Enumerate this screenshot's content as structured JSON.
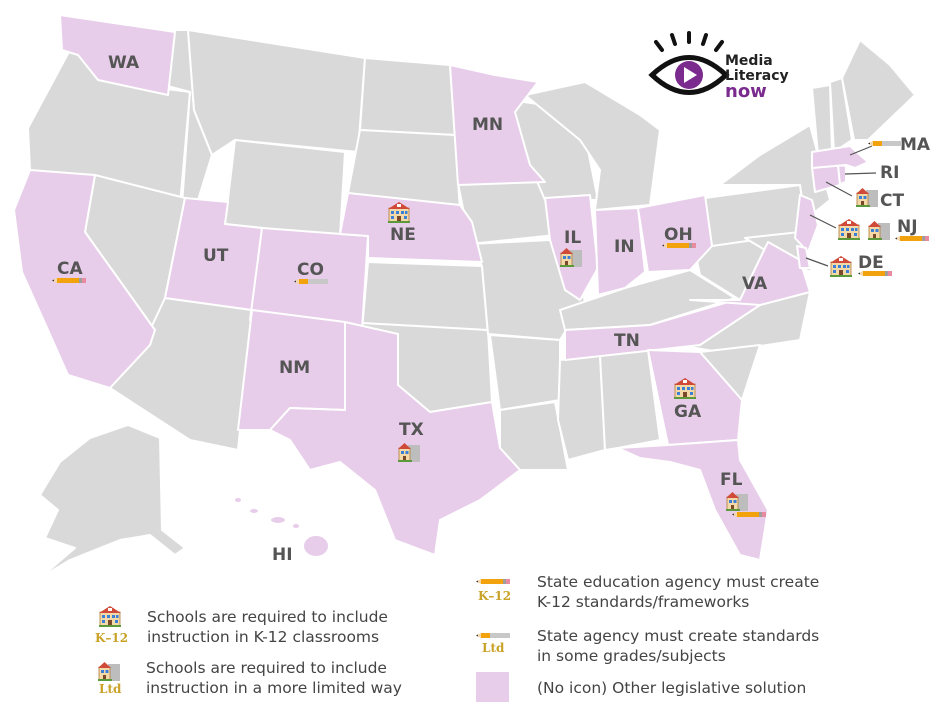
{
  "logo": {
    "line1": "Media",
    "line2": "Literacy",
    "line3": "now"
  },
  "states": {
    "WA": "WA",
    "MN": "MN",
    "MA": "MA",
    "RI": "RI",
    "CT": "CT",
    "NJ": "NJ",
    "DE": "DE",
    "NE": "NE",
    "IL": "IL",
    "IN": "IN",
    "OH": "OH",
    "CA": "CA",
    "UT": "UT",
    "CO": "CO",
    "VA": "VA",
    "TN": "TN",
    "NM": "NM",
    "TX": "TX",
    "GA": "GA",
    "FL": "FL",
    "HI": "HI"
  },
  "legend": {
    "schools_k12": {
      "line1": "Schools are required to include",
      "line2": "instruction in K-12 classrooms",
      "badge": "K–12"
    },
    "schools_ltd": {
      "line1": "Schools are required to include",
      "line2": "instruction in a more limited way",
      "badge": "Ltd"
    },
    "agency_k12": {
      "line1": "State education agency must create",
      "line2": "K-12 standards/frameworks",
      "badge": "K–12"
    },
    "agency_ltd": {
      "line1": "State agency must create standards",
      "line2": "in some grades/subjects",
      "badge": "Ltd"
    },
    "other": {
      "text": "(No icon) Other legislative solution"
    }
  },
  "colors": {
    "highlight": "#e7cde9",
    "other": "#d9d9d9",
    "logo_purple": "#7b2a8e",
    "pencil": "#f2a20c"
  }
}
